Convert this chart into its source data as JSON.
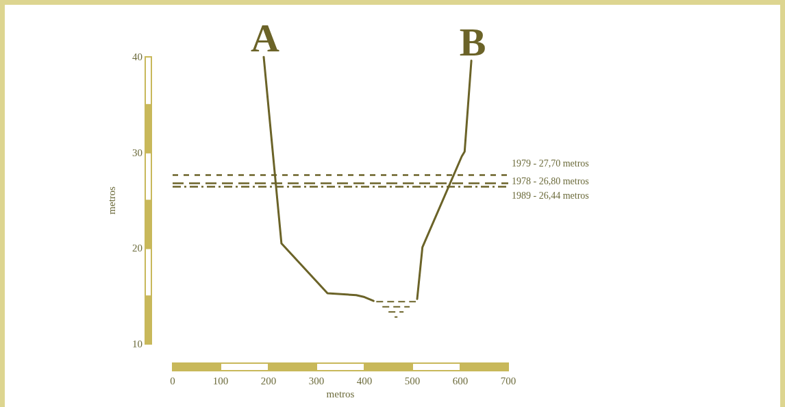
{
  "chart_data": {
    "type": "line",
    "xlabel": "metros",
    "ylabel": "metros",
    "series": [
      {
        "color": "#6b6328",
        "x": [
          190,
          227,
          323,
          383,
          400,
          419
        ],
        "values": [
          40,
          20.5,
          15.3,
          15.1,
          14.9,
          14.5
        ]
      },
      {
        "color": "#6b6328",
        "x": [
          510,
          521,
          603,
          609,
          623
        ],
        "values": [
          14.7,
          20.1,
          29.6,
          30.1,
          39.6
        ]
      }
    ],
    "xlim": [
      0,
      700
    ],
    "xticks": [
      0,
      100,
      200,
      300,
      400,
      500,
      600,
      700
    ],
    "ylim": [
      10,
      40
    ],
    "yticks": [
      10,
      20,
      30,
      40
    ],
    "grid": false,
    "marker": "none",
    "line_style": "solid",
    "ref_lines": [
      {
        "axis": "y",
        "value": 27.7,
        "label": "1979 - 27,70 metros",
        "color": "#6b6328",
        "line_style": "dashed"
      },
      {
        "axis": "y",
        "value": 26.8,
        "label": "1978 - 26,80 metros",
        "color": "#6b6328",
        "line_style": "dashed"
      },
      {
        "axis": "y",
        "value": 26.44,
        "label": "1989 - 26,44 metros",
        "color": "#6b6328",
        "line_style": "dotted"
      }
    ],
    "annotations": [
      {
        "text": "A",
        "x": 190,
        "y": 40
      },
      {
        "text": "B",
        "x": 623,
        "y": 39.6
      }
    ]
  }
}
